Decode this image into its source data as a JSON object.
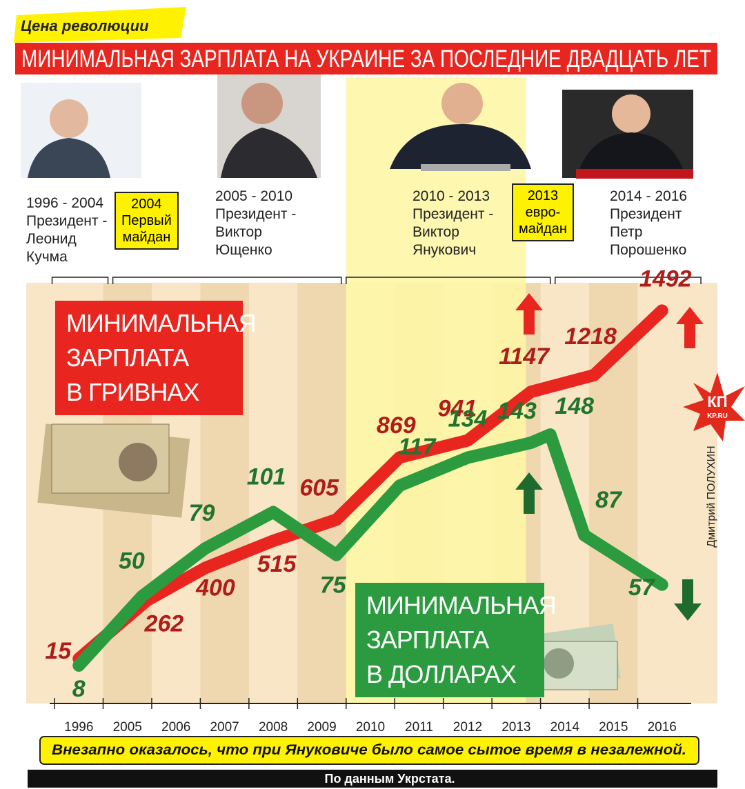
{
  "header": {
    "tag": "Цена революции",
    "title": "МИНИМАЛЬНАЯ ЗАРПЛАТА НА УКРАИНЕ ЗА ПОСЛЕДНИЕ ДВАДЦАТЬ ЛЕТ"
  },
  "periods": [
    "1996 - 2004\nПрезидент -\nЛеонид\nКучма",
    "2005 - 2010\nПрезидент -\nВиктор\nЮщенко",
    "2010 - 2013\nПрезидент -\nВиктор\nЯнукович",
    "2014 - 2016\nПрезидент\nПетр\nПорошенко"
  ],
  "callouts": [
    "2004\nПервый\nмайдан",
    "2013\nевро-\nмайдан"
  ],
  "logo": {
    "name": "КП",
    "site": "KP.RU"
  },
  "credit": "Дмитрий ПОЛУХИН",
  "footer": {
    "note": "Внезапно оказалось, что при Януковиче было самое сытое время в незалежной.",
    "source": "По данным Укрстата."
  },
  "chart_data": {
    "type": "line",
    "categories": [
      "1996",
      "2005",
      "2006",
      "2007",
      "2008",
      "2009",
      "2010",
      "2011",
      "2012",
      "2013",
      "2014",
      "2015",
      "2016"
    ],
    "xlim": [
      -0.6,
      12.6
    ],
    "ylim": [
      -175,
      1610
    ],
    "y2lim": [
      -15,
      240
    ],
    "series": [
      {
        "name": "МИНИМАЛЬНАЯ\nЗАРПЛАТА\nВ ГРИВНАХ",
        "color": "#e8261f",
        "x": [
          0,
          1.4,
          2.6,
          4.0,
          5.3,
          6.6,
          8.0,
          9.3,
          10.6,
          12
        ],
        "values": [
          15,
          262,
          400,
          515,
          605,
          869,
          941,
          1147,
          1218,
          1492
        ]
      },
      {
        "name": "МИНИМАЛЬНАЯ\nЗАРПЛАТА\nВ ДОЛЛАРАХ",
        "color": "#2c9b3f",
        "axis": "y2",
        "x": [
          0,
          1.3,
          2.6,
          4.0,
          5.3,
          6.6,
          8.0,
          9.3,
          9.7,
          10.4,
          12
        ],
        "values": [
          8,
          50,
          79,
          101,
          75,
          117,
          134,
          143,
          148,
          87,
          57
        ]
      }
    ]
  }
}
